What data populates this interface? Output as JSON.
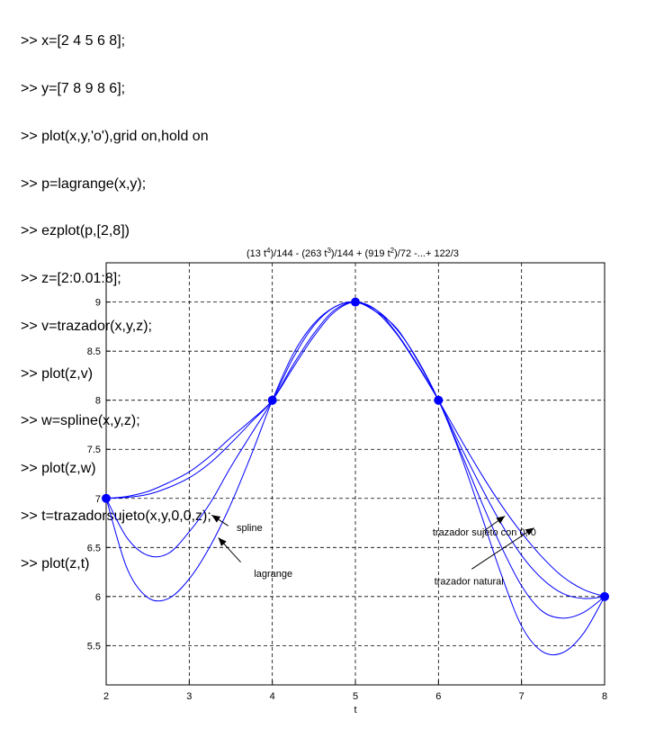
{
  "code_lines": [
    ">> x=[2 4 5 6 8];",
    ">> y=[7 8 9 8 6];",
    ">> plot(x,y,'o'),grid on,hold on",
    ">> p=lagrange(x,y);",
    ">> ezplot(p,[2,8])",
    ">> z=[2:0.01:8];",
    ">> v=trazador(x,y,z);",
    ">> plot(z,v)",
    ">> w=spline(x,y,z);",
    ">> plot(z,w)",
    ">> t=trazadorsujeto(x,y,0,0,z);",
    ">> plot(z,t)"
  ],
  "chart_data": {
    "type": "line",
    "title_parts": {
      "p1": "(13 t",
      "s1": "4",
      "p2": ")/144 - (263 t",
      "s2": "3",
      "p3": ")/144 + (919 t",
      "s3": "2",
      "p4": ")/72 -...+ 122/3"
    },
    "xlabel": "t",
    "ylabel": "",
    "xlim": [
      2,
      8
    ],
    "ylim": [
      5.1,
      9.4
    ],
    "xticks": [
      2,
      3,
      4,
      5,
      6,
      7,
      8
    ],
    "yticks": [
      5.5,
      6,
      6.5,
      7,
      7.5,
      8,
      8.5,
      9
    ],
    "ytick_labels": [
      "5.5",
      "6",
      "6.5",
      "7",
      "7.5",
      "8",
      "8.5",
      "9"
    ],
    "grid": true,
    "line_color": "#0000ff",
    "points": {
      "x": [
        2,
        4,
        5,
        6,
        8
      ],
      "y": [
        7,
        8,
        9,
        8,
        6
      ]
    },
    "series": [
      {
        "x": [
          2.0,
          2.25,
          2.5,
          2.75,
          3.0,
          3.25,
          3.5,
          3.75,
          4.0,
          4.25,
          4.5,
          4.75,
          5.0,
          5.25,
          5.5,
          5.75,
          6.0,
          6.25,
          6.5,
          6.75,
          7.0,
          7.25,
          7.5,
          7.75,
          8.0
        ],
        "values": [
          7.0,
          6.29,
          5.99,
          5.98,
          6.18,
          6.51,
          6.94,
          7.45,
          8.0,
          8.47,
          8.78,
          8.95,
          9.0,
          8.92,
          8.72,
          8.41,
          8.0,
          7.48,
          6.87,
          6.24,
          5.7,
          5.44,
          5.43,
          5.63,
          6.0
        ]
      },
      {
        "x": [
          2.0,
          2.25,
          2.5,
          2.75,
          3.0,
          3.25,
          3.5,
          3.75,
          4.0,
          4.25,
          4.5,
          4.75,
          5.0,
          5.25,
          5.5,
          5.75,
          6.0,
          6.25,
          6.5,
          6.75,
          7.0,
          7.25,
          7.5,
          7.75,
          8.0
        ],
        "values": [
          7.0,
          6.6,
          6.42,
          6.44,
          6.66,
          6.95,
          7.32,
          7.66,
          8.0,
          8.43,
          8.76,
          8.95,
          9.0,
          8.9,
          8.73,
          8.4,
          8.0,
          7.51,
          7.0,
          6.52,
          6.11,
          5.85,
          5.78,
          5.84,
          6.0
        ]
      },
      {
        "x": [
          2.0,
          2.25,
          2.5,
          2.75,
          3.0,
          3.25,
          3.5,
          3.75,
          4.0,
          4.25,
          4.5,
          4.75,
          5.0,
          5.25,
          5.5,
          5.75,
          6.0,
          6.25,
          6.5,
          6.75,
          7.0,
          7.25,
          7.5,
          7.75,
          8.0
        ],
        "values": [
          7.0,
          7.02,
          7.07,
          7.16,
          7.27,
          7.43,
          7.62,
          7.8,
          8.0,
          8.33,
          8.65,
          8.9,
          9.0,
          8.9,
          8.67,
          8.35,
          8.0,
          7.63,
          7.27,
          6.94,
          6.65,
          6.4,
          6.2,
          6.07,
          6.0
        ]
      },
      {
        "x": [
          2.0,
          2.25,
          2.5,
          2.75,
          3.0,
          3.25,
          3.5,
          3.75,
          4.0,
          4.25,
          4.5,
          4.75,
          5.0,
          5.25,
          5.5,
          5.75,
          6.0,
          6.25,
          6.5,
          6.75,
          7.0,
          7.25,
          7.5,
          7.75,
          8.0
        ],
        "values": [
          7.0,
          7.01,
          7.04,
          7.11,
          7.21,
          7.36,
          7.56,
          7.78,
          8.0,
          8.36,
          8.68,
          8.92,
          9.0,
          8.92,
          8.68,
          8.36,
          8.0,
          7.56,
          7.14,
          6.75,
          6.42,
          6.18,
          6.03,
          5.98,
          6.0
        ]
      }
    ],
    "annotations": [
      {
        "text": "spline",
        "x": 3.57,
        "y": 6.67,
        "arrow_from": [
          3.47,
          6.72
        ],
        "arrow_to": [
          3.27,
          6.83
        ]
      },
      {
        "text": "lagrange",
        "x": 3.78,
        "y": 6.2,
        "arrow_from": [
          3.62,
          6.35
        ],
        "arrow_to": [
          3.35,
          6.6
        ]
      },
      {
        "text": "trazador sujeto con 0, 0",
        "x": 5.93,
        "y": 6.62,
        "arrow_from": [
          6.55,
          6.67
        ],
        "arrow_to": [
          6.8,
          6.82
        ]
      },
      {
        "text": "trazador natural",
        "x": 5.95,
        "y": 6.12,
        "arrow_from": [
          6.4,
          6.28
        ],
        "arrow_to": [
          7.15,
          6.7
        ]
      }
    ]
  }
}
